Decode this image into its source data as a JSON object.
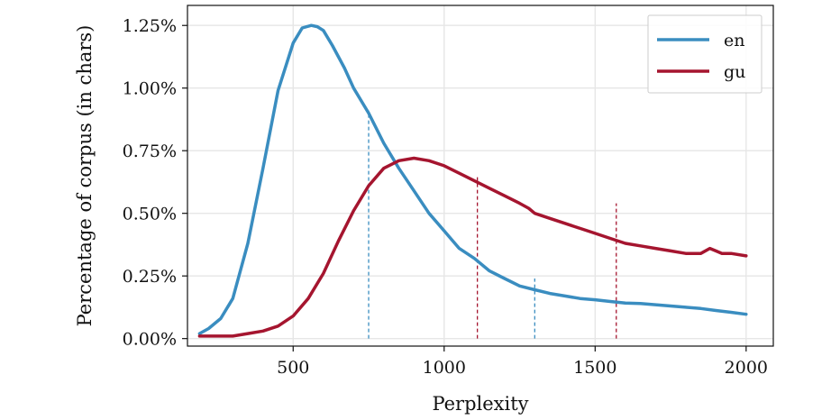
{
  "chart_data": {
    "type": "line",
    "xlabel": "Perplexity",
    "ylabel": "Percentage of corpus (in chars)",
    "xlim": [
      150,
      2090
    ],
    "ylim": [
      -0.0003,
      0.0133
    ],
    "x_ticks": [
      500,
      1000,
      1500,
      2000
    ],
    "x_tick_labels": [
      "500",
      "1000",
      "1500",
      "2000"
    ],
    "y_ticks": [
      0,
      0.0025,
      0.005,
      0.0075,
      0.01,
      0.0125
    ],
    "y_tick_labels": [
      "0.00%",
      "0.25%",
      "0.50%",
      "0.75%",
      "1.00%",
      "1.25%"
    ],
    "grid": true,
    "legend_position": "top-right",
    "series": [
      {
        "name": "en",
        "color": "#3a8dc0",
        "x": [
          190,
          220,
          260,
          300,
          350,
          400,
          450,
          500,
          530,
          560,
          580,
          600,
          630,
          670,
          700,
          750,
          800,
          850,
          900,
          950,
          1000,
          1050,
          1100,
          1150,
          1200,
          1250,
          1300,
          1350,
          1400,
          1450,
          1500,
          1550,
          1600,
          1650,
          1700,
          1750,
          1800,
          1850,
          1900,
          1950,
          2000
        ],
        "y": [
          0.0002,
          0.0004,
          0.0008,
          0.0016,
          0.0038,
          0.0068,
          0.0099,
          0.0118,
          0.0124,
          0.0125,
          0.01245,
          0.0123,
          0.0117,
          0.0108,
          0.01,
          0.009,
          0.0078,
          0.0068,
          0.0059,
          0.005,
          0.0043,
          0.0036,
          0.0032,
          0.0027,
          0.0024,
          0.0021,
          0.00195,
          0.0018,
          0.0017,
          0.0016,
          0.00155,
          0.00148,
          0.00142,
          0.0014,
          0.00135,
          0.0013,
          0.00125,
          0.0012,
          0.00112,
          0.00105,
          0.00097
        ]
      },
      {
        "name": "gu",
        "color": "#a5152f",
        "x": [
          190,
          250,
          300,
          350,
          400,
          450,
          500,
          550,
          600,
          650,
          700,
          750,
          800,
          850,
          900,
          950,
          1000,
          1050,
          1100,
          1150,
          1200,
          1250,
          1280,
          1300,
          1350,
          1400,
          1450,
          1500,
          1550,
          1600,
          1650,
          1700,
          1750,
          1800,
          1850,
          1880,
          1900,
          1920,
          1950,
          2000
        ],
        "y": [
          0.0001,
          0.0001,
          0.0001,
          0.0002,
          0.0003,
          0.0005,
          0.0009,
          0.0016,
          0.0026,
          0.0039,
          0.0051,
          0.0061,
          0.0068,
          0.0071,
          0.0072,
          0.0071,
          0.0069,
          0.0066,
          0.0063,
          0.006,
          0.0057,
          0.0054,
          0.0052,
          0.005,
          0.0048,
          0.0046,
          0.0044,
          0.0042,
          0.004,
          0.0038,
          0.0037,
          0.0036,
          0.0035,
          0.0034,
          0.0034,
          0.0036,
          0.0035,
          0.0034,
          0.0034,
          0.0033
        ]
      }
    ],
    "reference_lines": [
      {
        "series": "en",
        "x": 750,
        "y": 0.0091
      },
      {
        "series": "en",
        "x": 1300,
        "y": 0.0024
      },
      {
        "series": "gu",
        "x": 1110,
        "y": 0.0065
      },
      {
        "series": "gu",
        "x": 1570,
        "y": 0.0054
      }
    ]
  }
}
